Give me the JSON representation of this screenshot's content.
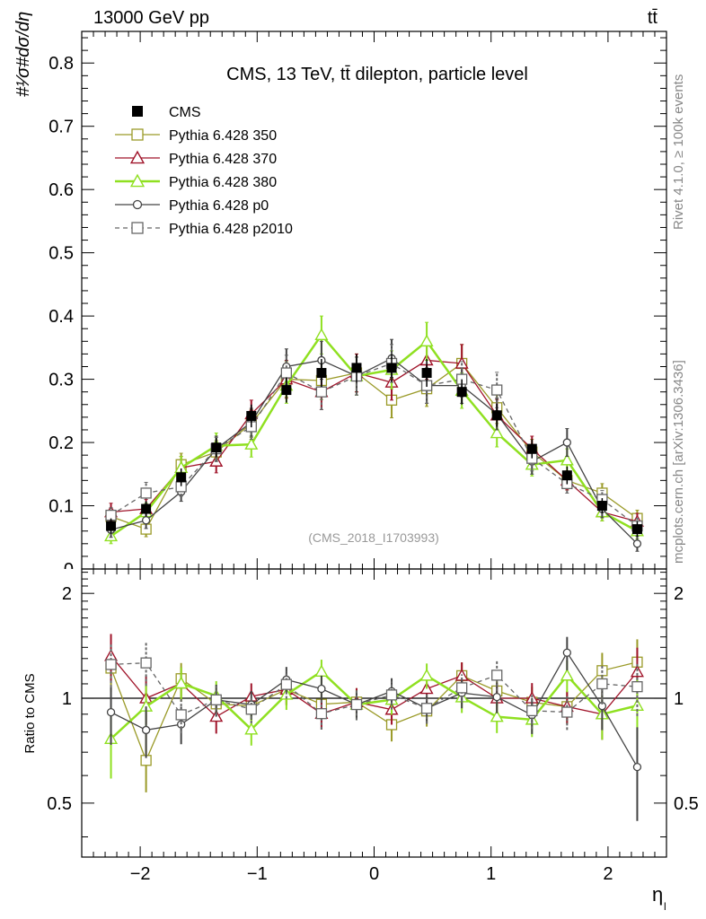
{
  "header": {
    "energy_label": "13000 GeV pp",
    "process_label": "tt̄"
  },
  "side_labels": {
    "rivet": "Rivet 4.1.0, ≥ 100k events",
    "mcplots": "mcplots.cern.ch [arXiv:1306.3436]"
  },
  "chart_data": {
    "type": "line",
    "title": "CMS, 13 TeV, tt̄ dilepton, particle level",
    "analysis_id": "(CMS_2018_I1703993)",
    "xlabel": "η",
    "xlabel_sub": "l",
    "ylabel": "#¹⁄σ#dσ/dη",
    "ratio_ylabel": "Ratio to CMS",
    "xlim": [
      -2.5,
      2.5
    ],
    "ylim": [
      0,
      0.85
    ],
    "ratio_ylim": [
      0.35,
      2.35
    ],
    "x_ticks": [
      "−2",
      "−1",
      "0",
      "1",
      "2"
    ],
    "y_ticks": [
      "0.1",
      "0.2",
      "0.3",
      "0.4",
      "0.5",
      "0.6",
      "0.7",
      "0.8"
    ],
    "ratio_y_ticks": [
      "0.5",
      "1",
      "2"
    ],
    "x": [
      -2.25,
      -1.95,
      -1.65,
      -1.35,
      -1.05,
      -0.75,
      -0.45,
      -0.15,
      0.15,
      0.45,
      0.75,
      1.05,
      1.35,
      1.65,
      1.95,
      2.25
    ],
    "series": [
      {
        "name": "CMS",
        "color": "#000000",
        "marker": "filled-square",
        "values": [
          0.068,
          0.095,
          0.145,
          0.192,
          0.242,
          0.283,
          0.31,
          0.318,
          0.318,
          0.31,
          0.28,
          0.243,
          0.19,
          0.148,
          0.1,
          0.063
        ],
        "errors": [
          0.012,
          0.012,
          0.014,
          0.015,
          0.018,
          0.02,
          0.022,
          0.022,
          0.022,
          0.022,
          0.02,
          0.018,
          0.015,
          0.014,
          0.012,
          0.012
        ]
      },
      {
        "name": "Pythia 6.428 350",
        "color": "#9a9a28",
        "marker": "open-square",
        "values": [
          0.083,
          0.063,
          0.165,
          0.185,
          0.23,
          0.3,
          0.298,
          0.31,
          0.267,
          0.285,
          0.325,
          0.255,
          0.185,
          0.14,
          0.12,
          0.08
        ],
        "errors": [
          0.012,
          0.012,
          0.018,
          0.018,
          0.022,
          0.028,
          0.03,
          0.03,
          0.028,
          0.028,
          0.03,
          0.025,
          0.02,
          0.015,
          0.015,
          0.013
        ]
      },
      {
        "name": "Pythia 6.428 370",
        "color": "#a0142a",
        "marker": "open-triangle",
        "values": [
          0.09,
          0.095,
          0.16,
          0.17,
          0.245,
          0.3,
          0.28,
          0.31,
          0.295,
          0.33,
          0.325,
          0.243,
          0.19,
          0.14,
          0.09,
          0.075
        ],
        "errors": [
          0.014,
          0.015,
          0.018,
          0.018,
          0.022,
          0.03,
          0.028,
          0.03,
          0.028,
          0.03,
          0.03,
          0.025,
          0.02,
          0.015,
          0.014,
          0.013
        ]
      },
      {
        "name": "Pythia 6.428 380",
        "color": "#8fe020",
        "marker": "open-triangle",
        "values": [
          0.052,
          0.09,
          0.16,
          0.195,
          0.197,
          0.29,
          0.37,
          0.305,
          0.315,
          0.36,
          0.282,
          0.215,
          0.165,
          0.172,
          0.09,
          0.06
        ],
        "errors": [
          0.012,
          0.014,
          0.018,
          0.02,
          0.02,
          0.028,
          0.03,
          0.03,
          0.03,
          0.03,
          0.028,
          0.022,
          0.018,
          0.018,
          0.014,
          0.012
        ]
      },
      {
        "name": "Pythia 6.428 p0",
        "color": "#444444",
        "marker": "open-circle",
        "values": [
          0.062,
          0.077,
          0.122,
          0.19,
          0.232,
          0.32,
          0.33,
          0.305,
          0.333,
          0.29,
          0.29,
          0.245,
          0.17,
          0.2,
          0.095,
          0.04
        ],
        "errors": [
          0.012,
          0.013,
          0.015,
          0.02,
          0.022,
          0.028,
          0.03,
          0.03,
          0.03,
          0.028,
          0.028,
          0.025,
          0.02,
          0.022,
          0.014,
          0.012
        ]
      },
      {
        "name": "Pythia 6.428 p2010",
        "color": "#666666",
        "marker": "open-square-dashed",
        "values": [
          0.085,
          0.12,
          0.13,
          0.19,
          0.225,
          0.31,
          0.28,
          0.305,
          0.325,
          0.29,
          0.3,
          0.283,
          0.175,
          0.135,
          0.11,
          0.068
        ],
        "errors": [
          0.012,
          0.017,
          0.015,
          0.018,
          0.02,
          0.028,
          0.028,
          0.03,
          0.03,
          0.028,
          0.028,
          0.028,
          0.02,
          0.015,
          0.014,
          0.012
        ]
      }
    ]
  }
}
